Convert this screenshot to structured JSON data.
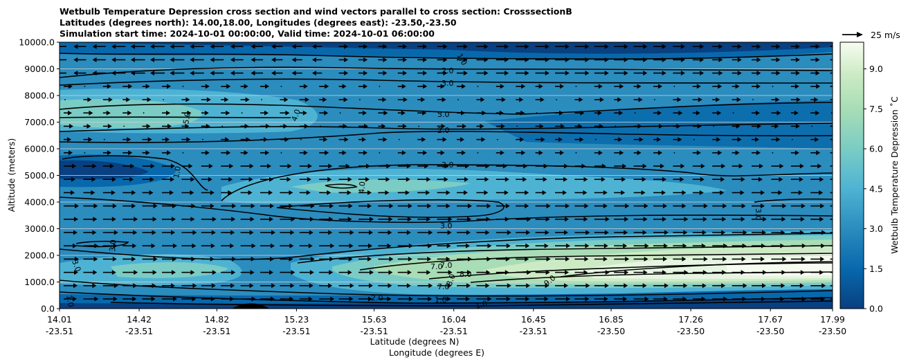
{
  "chart_data": {
    "type": "contour",
    "title_lines": [
      "Wetbulb Temperature Depression cross section and wind vectors parallel to cross section: CrosssectionB",
      "Latitudes (degrees north): 14.00,18.00, Longitudes (degrees east): -23.50,-23.50",
      "Simulation start time: 2024-10-01 00:00:00, Valid time: 2024-10-01 06:00:00"
    ],
    "ylabel": "Altitude (meters)",
    "xlabel_lat": "Latitude (degrees N)",
    "xlabel_lon": "Longitude (degrees E)",
    "ylim": [
      0,
      10000
    ],
    "y_ticks": [
      "0.0",
      "1000.0",
      "2000.0",
      "3000.0",
      "4000.0",
      "5000.0",
      "6000.0",
      "7000.0",
      "8000.0",
      "9000.0",
      "10000.0"
    ],
    "x_ticks_lat": [
      "14.01",
      "14.42",
      "14.82",
      "15.23",
      "15.63",
      "16.04",
      "16.45",
      "16.85",
      "17.26",
      "17.67",
      "17.99"
    ],
    "x_ticks_lon": [
      "-23.51",
      "-23.51",
      "-23.51",
      "-23.51",
      "-23.51",
      "-23.51",
      "-23.51",
      "-23.50",
      "-23.50",
      "-23.50",
      "-23.50"
    ],
    "colorbar": {
      "label": "Wetbulb Temperature Depression ˚C",
      "range": [
        0,
        10
      ],
      "ticks": [
        "0.0",
        "1.5",
        "3.0",
        "4.5",
        "6.0",
        "7.5",
        "9.0"
      ],
      "colormap": "GnBu_r"
    },
    "quiver_key_label": "25 m/s",
    "contour_labels": [
      "1.0",
      "2.0",
      "3.0",
      "3.0",
      "2.0",
      "3.0",
      "5.0",
      "4.0",
      "1.0",
      "4.0",
      "3.0",
      "3.0",
      "3.0",
      "3.0",
      "7.0",
      "7.0",
      "7.0",
      "8.0",
      "8.0",
      "9.0",
      "2.0",
      "1.0",
      "1.0",
      "1.0"
    ],
    "grid": "horizontal"
  }
}
